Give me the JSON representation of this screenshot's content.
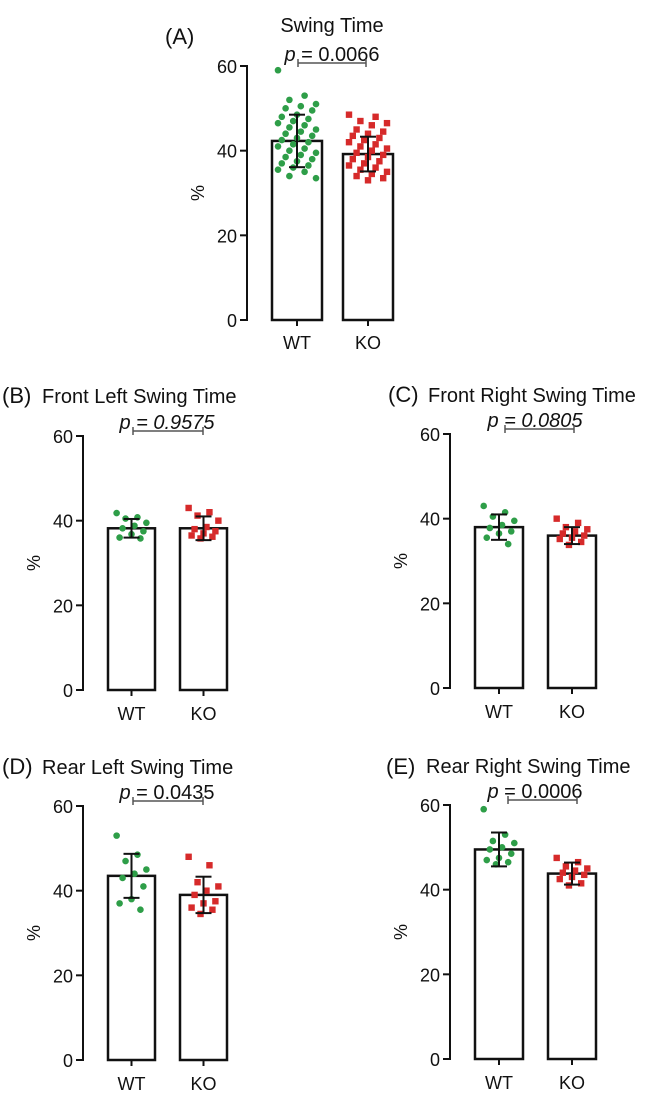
{
  "chart_data": [
    {
      "panel": "(A)",
      "title": "Swing Time",
      "type": "bar",
      "ylabel": "%",
      "ylim": [
        0,
        60
      ],
      "yticks": [
        0,
        20,
        40,
        60
      ],
      "categories": [
        "WT",
        "KO"
      ],
      "means": [
        42.3,
        39.2
      ],
      "sd": [
        6.2,
        4.1
      ],
      "p_label": "p = 0.0066",
      "p_italic_value": false,
      "colors": [
        "#2e9e48",
        "#d62a2a"
      ],
      "points": [
        [
          59.0,
          53.0,
          52.0,
          51.0,
          50.5,
          50.0,
          49.5,
          48.5,
          48.0,
          47.5,
          47.0,
          46.5,
          46.0,
          45.5,
          45.0,
          44.5,
          44.0,
          43.5,
          43.0,
          42.5,
          42.0,
          41.5,
          41.0,
          40.5,
          40.0,
          39.5,
          39.0,
          38.5,
          38.0,
          37.5,
          37.0,
          36.5,
          36.0,
          35.5,
          35.0,
          34.0,
          33.5
        ],
        [
          48.5,
          48.0,
          47.0,
          46.5,
          46.0,
          45.0,
          44.5,
          44.0,
          43.5,
          43.0,
          42.5,
          42.0,
          41.5,
          41.0,
          40.5,
          40.0,
          39.5,
          39.0,
          38.5,
          38.0,
          37.5,
          37.0,
          36.5,
          36.0,
          35.5,
          35.0,
          34.5,
          34.0,
          33.5,
          33.0
        ]
      ]
    },
    {
      "panel": "(B)",
      "title": "Front Left Swing Time",
      "type": "bar",
      "ylabel": "%",
      "ylim": [
        0,
        60
      ],
      "yticks": [
        0,
        20,
        40,
        60
      ],
      "categories": [
        "WT",
        "KO"
      ],
      "means": [
        38.2,
        38.2
      ],
      "sd": [
        2.2,
        2.8
      ],
      "p_label": "p = 0.9575",
      "p_italic_value": true,
      "colors": [
        "#2e9e48",
        "#d62a2a"
      ],
      "points": [
        [
          41.8,
          40.8,
          40.5,
          39.5,
          38.8,
          38.2,
          37.5,
          36.8,
          36.0,
          35.8
        ],
        [
          43.0,
          42.0,
          41.2,
          40.0,
          38.5,
          38.0,
          37.5,
          37.0,
          36.5,
          36.2,
          35.8
        ]
      ]
    },
    {
      "panel": "(C)",
      "title": "Front Right Swing Time",
      "type": "bar",
      "ylabel": "%",
      "ylim": [
        0,
        60
      ],
      "yticks": [
        0,
        20,
        40,
        60
      ],
      "categories": [
        "WT",
        "KO"
      ],
      "means": [
        38.0,
        36.0
      ],
      "sd": [
        3.0,
        2.0
      ],
      "p_label": "p = 0.0805",
      "p_italic_value": true,
      "colors": [
        "#2e9e48",
        "#d62a2a"
      ],
      "points": [
        [
          43.0,
          41.5,
          40.5,
          39.5,
          38.5,
          37.8,
          37.0,
          36.5,
          35.5,
          34.0
        ],
        [
          40.0,
          39.0,
          38.0,
          37.5,
          37.0,
          36.5,
          36.0,
          35.5,
          35.2,
          34.5,
          33.8
        ]
      ]
    },
    {
      "panel": "(D)",
      "title": "Rear Left Swing Time",
      "type": "bar",
      "ylabel": "%",
      "ylim": [
        0,
        60
      ],
      "yticks": [
        0,
        20,
        40,
        60
      ],
      "categories": [
        "WT",
        "KO"
      ],
      "means": [
        43.5,
        39.0
      ],
      "sd": [
        5.2,
        4.3
      ],
      "p_label": "p = 0.0435",
      "p_italic_value": false,
      "colors": [
        "#2e9e48",
        "#d62a2a"
      ],
      "points": [
        [
          53.0,
          48.5,
          47.0,
          45.0,
          44.0,
          43.0,
          41.0,
          38.0,
          37.0,
          35.5
        ],
        [
          48.0,
          46.0,
          42.0,
          41.0,
          40.0,
          39.0,
          37.5,
          37.0,
          36.0,
          35.5,
          34.5
        ]
      ]
    },
    {
      "panel": "(E)",
      "title": "Rear Right Swing Time",
      "type": "bar",
      "ylabel": "%",
      "ylim": [
        0,
        60
      ],
      "yticks": [
        0,
        20,
        40,
        60
      ],
      "categories": [
        "WT",
        "KO"
      ],
      "means": [
        49.5,
        43.8
      ],
      "sd": [
        4.0,
        2.6
      ],
      "p_label": "p = 0.0006",
      "p_italic_value": false,
      "colors": [
        "#2e9e48",
        "#d62a2a"
      ],
      "points": [
        [
          59.0,
          53.0,
          51.5,
          51.0,
          50.0,
          49.5,
          48.5,
          47.5,
          47.0,
          46.5,
          46.0
        ],
        [
          47.5,
          46.5,
          45.5,
          45.0,
          44.5,
          44.0,
          43.5,
          43.0,
          42.5,
          41.5,
          41.0
        ]
      ]
    }
  ]
}
